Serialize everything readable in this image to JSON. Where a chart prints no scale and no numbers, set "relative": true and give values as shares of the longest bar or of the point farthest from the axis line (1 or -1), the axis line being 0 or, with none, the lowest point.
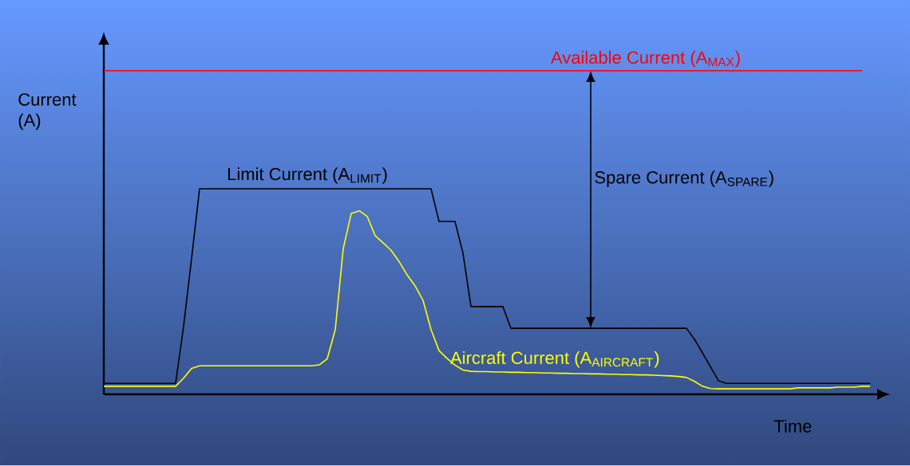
{
  "chart_data": {
    "type": "line",
    "relative": true,
    "xlabel": "Time",
    "ylabel": "Current (A)",
    "annotations": [
      "Spare Current (A$_{SPARE}$)"
    ],
    "categories": [
      null,
      null,
      null,
      null,
      null,
      null,
      null,
      null,
      null,
      null,
      null,
      null,
      null,
      null,
      null,
      null,
      null,
      null,
      null,
      null,
      null,
      null,
      null,
      null,
      null,
      null,
      null,
      null,
      null,
      null,
      null,
      null,
      null,
      null,
      null,
      null,
      null,
      null,
      null,
      null,
      null,
      null,
      null,
      null,
      null,
      null,
      null,
      null,
      null,
      null,
      null,
      null,
      null,
      null,
      null,
      null,
      null,
      null,
      null,
      null,
      null,
      null,
      null,
      null,
      null,
      null,
      null,
      null,
      null,
      null,
      null,
      null,
      null,
      null,
      null,
      null,
      null,
      null,
      null,
      null,
      null,
      null,
      null,
      null,
      null,
      null,
      null,
      null,
      null,
      null,
      null,
      null,
      null,
      null,
      null,
      null,
      null
    ],
    "series": [
      {
        "name": "Available Current (A$_{MAX}$)",
        "color": "#ff0000",
        "values": [
          1,
          1,
          1,
          1,
          1,
          1,
          1,
          1,
          1,
          1,
          1,
          1,
          1,
          1,
          1,
          1,
          1,
          1,
          1,
          1,
          1,
          1,
          1,
          1,
          1,
          1,
          1,
          1,
          1,
          1,
          1,
          1,
          1,
          1,
          1,
          1,
          1,
          1,
          1,
          1,
          1,
          1,
          1,
          1,
          1,
          1,
          1,
          1,
          1,
          1,
          1,
          1,
          1,
          1,
          1,
          1,
          1,
          1,
          1,
          1,
          1,
          1,
          1,
          1,
          1,
          1,
          1,
          1,
          1,
          1,
          1,
          1,
          1,
          1,
          1,
          1,
          1,
          1,
          1,
          1,
          1,
          1,
          1,
          1,
          1,
          1,
          1,
          1,
          1,
          1,
          1,
          1,
          1,
          1,
          1,
          1,
          null
        ]
      },
      {
        "name": "Limit Current (A$_{LIMIT}$)",
        "color": "#000000",
        "values": [
          0.034,
          0.034,
          0.034,
          0.034,
          0.034,
          0.034,
          0.034,
          0.034,
          0.034,
          0.034,
          0.21,
          0.42,
          0.635,
          0.635,
          0.635,
          0.635,
          0.635,
          0.635,
          0.635,
          0.635,
          0.635,
          0.635,
          0.635,
          0.635,
          0.635,
          0.635,
          0.635,
          0.635,
          0.635,
          0.635,
          0.635,
          0.635,
          0.635,
          0.635,
          0.635,
          0.635,
          0.635,
          0.635,
          0.635,
          0.635,
          0.635,
          0.635,
          0.534,
          0.534,
          0.534,
          0.436,
          0.271,
          0.271,
          0.271,
          0.271,
          0.271,
          0.204,
          0.204,
          0.204,
          0.204,
          0.204,
          0.204,
          0.204,
          0.204,
          0.204,
          0.204,
          0.204,
          0.204,
          0.204,
          0.204,
          0.204,
          0.204,
          0.204,
          0.204,
          0.204,
          0.204,
          0.204,
          0.204,
          0.204,
          0.17,
          0.128,
          0.085,
          0.042,
          0.034,
          0.034,
          0.034,
          0.034,
          0.034,
          0.034,
          0.034,
          0.034,
          0.034,
          0.034,
          0.034,
          0.034,
          0.034,
          0.034,
          0.034,
          0.034,
          0.034,
          0.034,
          0.034
        ]
      },
      {
        "name": "Aircraft Current (A$_{AIRCRAFT}$)",
        "color": "#ffff00",
        "values": [
          0.025,
          0.025,
          0.025,
          0.025,
          0.025,
          0.025,
          0.025,
          0.025,
          0.025,
          0.025,
          0.05,
          0.08,
          0.088,
          0.088,
          0.088,
          0.088,
          0.088,
          0.088,
          0.088,
          0.088,
          0.088,
          0.088,
          0.088,
          0.088,
          0.088,
          0.088,
          0.088,
          0.091,
          0.11,
          0.2,
          0.45,
          0.559,
          0.567,
          0.55,
          0.49,
          0.468,
          0.445,
          0.41,
          0.369,
          0.335,
          0.29,
          0.2,
          0.135,
          0.111,
          0.09,
          0.075,
          0.071,
          0.07,
          0.07,
          0.069,
          0.069,
          0.068,
          0.068,
          0.067,
          0.067,
          0.066,
          0.066,
          0.065,
          0.065,
          0.064,
          0.064,
          0.063,
          0.063,
          0.062,
          0.062,
          0.061,
          0.061,
          0.06,
          0.06,
          0.059,
          0.058,
          0.057,
          0.055,
          0.052,
          0.04,
          0.025,
          0.018,
          0.017,
          0.017,
          0.017,
          0.017,
          0.017,
          0.017,
          0.017,
          0.017,
          0.017,
          0.017,
          0.02,
          0.02,
          0.02,
          0.02,
          0.02,
          0.022,
          0.022,
          0.022,
          0.025,
          0.025
        ]
      }
    ]
  }
}
